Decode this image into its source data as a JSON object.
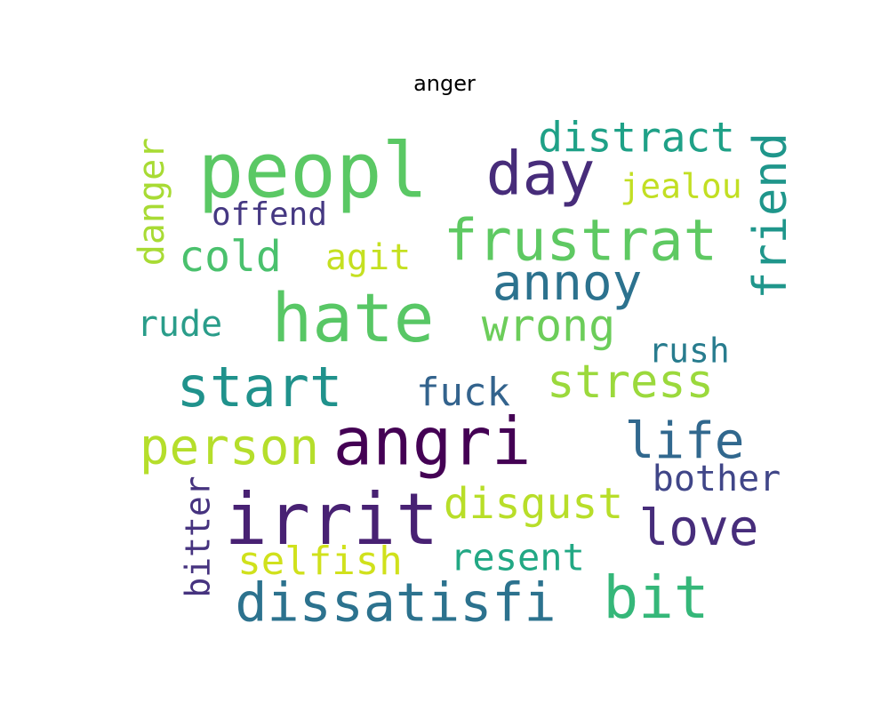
{
  "chart_data": {
    "type": "wordcloud",
    "title": "anger",
    "words": [
      {
        "text": "peopl",
        "weight": 1.0,
        "color": "#5ac864"
      },
      {
        "text": "hate",
        "weight": 0.92,
        "color": "#58c765"
      },
      {
        "text": "irrit",
        "weight": 0.95,
        "color": "#482173"
      },
      {
        "text": "angri",
        "weight": 0.9,
        "color": "#440154"
      },
      {
        "text": "day",
        "weight": 0.84,
        "color": "#472c7a"
      },
      {
        "text": "frustrat",
        "weight": 0.74,
        "color": "#5ec962"
      },
      {
        "text": "start",
        "weight": 0.72,
        "color": "#20928c"
      },
      {
        "text": "dissatisfi",
        "weight": 0.7,
        "color": "#2c728e"
      },
      {
        "text": "bit",
        "weight": 0.72,
        "color": "#35b779"
      },
      {
        "text": "person",
        "weight": 0.66,
        "color": "#b5de2b"
      },
      {
        "text": "life",
        "weight": 0.66,
        "color": "#31688e"
      },
      {
        "text": "annoy",
        "weight": 0.62,
        "color": "#2c728e"
      },
      {
        "text": "love",
        "weight": 0.62,
        "color": "#472d7b"
      },
      {
        "text": "stress",
        "weight": 0.6,
        "color": "#9bd93c"
      },
      {
        "text": "friend",
        "weight": 0.6,
        "color": "#1f968b"
      },
      {
        "text": "wrong",
        "weight": 0.56,
        "color": "#6ccd5a"
      },
      {
        "text": "disgust",
        "weight": 0.54,
        "color": "#b8de29"
      },
      {
        "text": "cold",
        "weight": 0.54,
        "color": "#4ac16d"
      },
      {
        "text": "distract",
        "weight": 0.52,
        "color": "#1fa187"
      },
      {
        "text": "selfish",
        "weight": 0.5,
        "color": "#d0e11c"
      },
      {
        "text": "resent",
        "weight": 0.48,
        "color": "#22a884"
      },
      {
        "text": "bother",
        "weight": 0.46,
        "color": "#404688"
      },
      {
        "text": "fuck",
        "weight": 0.46,
        "color": "#33638d"
      },
      {
        "text": "danger",
        "weight": 0.45,
        "color": "#a8db34"
      },
      {
        "text": "bitter",
        "weight": 0.45,
        "color": "#46337f"
      },
      {
        "text": "jealou",
        "weight": 0.42,
        "color": "#c2df23"
      },
      {
        "text": "rude",
        "weight": 0.42,
        "color": "#2a9d8a"
      },
      {
        "text": "agit",
        "weight": 0.42,
        "color": "#c5e021"
      },
      {
        "text": "rush",
        "weight": 0.4,
        "color": "#287c8e"
      },
      {
        "text": "offend",
        "weight": 0.38,
        "color": "#453882"
      }
    ]
  }
}
